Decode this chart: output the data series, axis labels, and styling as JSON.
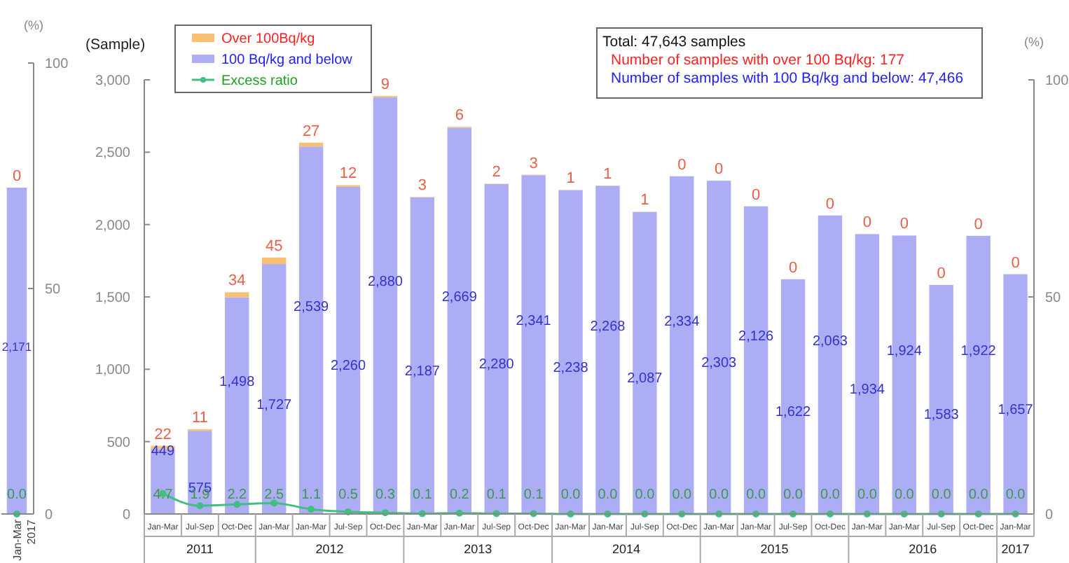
{
  "chart_data": [
    {
      "type": "bar",
      "stacked": true,
      "categories": [
        "Jan-Mar"
      ],
      "y2lim": [
        0,
        100
      ],
      "y2ticks": [
        0,
        50,
        100
      ],
      "y2label": "(%)",
      "marker": "circle",
      "annotations": [
        "2017"
      ],
      "series": [
        {
          "color": "#adadf5",
          "values": [
            2171
          ],
          "value_labels": [
            "2,171"
          ]
        },
        {
          "color": "#f8c070",
          "values": [
            0
          ],
          "value_labels": [
            "0"
          ]
        },
        {
          "type": "line",
          "axis": "y2",
          "color": "#40c080",
          "values": [
            0.0
          ],
          "value_labels": [
            "0.0"
          ]
        }
      ]
    },
    {
      "type": "bar",
      "stacked": true,
      "categories": [
        "Jan-Mar",
        "Jul-Sep",
        "Oct-Dec",
        "Jan-Mar",
        "Jan-Mar",
        "Jul-Sep",
        "Oct-Dec",
        "Jan-Mar",
        "Jan-Mar",
        "Jul-Sep",
        "Oct-Dec",
        "Jan-Mar",
        "Jan-Mar",
        "Jul-Sep",
        "Oct-Dec",
        "Jan-Mar",
        "Jan-Mar",
        "Jul-Sep",
        "Oct-Dec",
        "Jan-Mar",
        "Jan-Mar",
        "Jul-Sep",
        "Oct-Dec",
        "Jan-Mar"
      ],
      "ylabel": "(Sample)",
      "y2label": "(%)",
      "ylim": [
        0,
        3000
      ],
      "yticks": [
        0,
        500,
        {
          "value": 1000,
          "label": "1,000"
        },
        {
          "value": 1500,
          "label": "1,500"
        },
        {
          "value": 2000,
          "label": "2,000"
        },
        {
          "value": 2500,
          "label": "2,500"
        },
        {
          "value": 3000,
          "label": "3,000"
        }
      ],
      "y2lim": [
        0,
        100
      ],
      "y2ticks": [
        0,
        50,
        100
      ],
      "legend": "top left",
      "marker": "circle",
      "annotations": [
        "2011",
        "2012",
        "2013",
        "2014",
        "2015",
        "2016",
        "2017",
        "Total: 47,643 samples",
        "Number of samples with over 100 Bq/kg: 177",
        "Number of samples with 100 Bq/kg and below: 47,466"
      ],
      "series": [
        {
          "name": "100 Bq/kg and below",
          "color": "#adadf5",
          "values": [
            449,
            575,
            1498,
            1727,
            2539,
            2260,
            2880,
            2187,
            2669,
            2280,
            2341,
            2238,
            2268,
            2087,
            2334,
            2303,
            2126,
            1622,
            2063,
            1934,
            1924,
            1583,
            1922,
            1657
          ],
          "value_labels": [
            "449",
            "575",
            "1,498",
            "1,727",
            "2,539",
            "2,260",
            "2,880",
            "2,187",
            "2,669",
            "2,280",
            "2,341",
            "2,238",
            "2,268",
            "2,087",
            "2,334",
            "2,303",
            "2,126",
            "1,622",
            "2,063",
            "1,934",
            "1,924",
            "1,583",
            "1,922",
            "1,657"
          ]
        },
        {
          "name": "Over 100Bq/kg",
          "color": "#f8c070",
          "values": [
            22,
            11,
            34,
            45,
            27,
            12,
            9,
            3,
            6,
            2,
            3,
            1,
            1,
            1,
            0,
            0,
            0,
            0,
            0,
            0,
            0,
            0,
            0,
            0
          ],
          "value_labels": [
            "22",
            "11",
            "34",
            "45",
            "27",
            "12",
            "9",
            "3",
            "6",
            "2",
            "3",
            "1",
            "1",
            "1",
            "0",
            "0",
            "0",
            "0",
            "0",
            "0",
            "0",
            "0",
            "0",
            "0"
          ]
        },
        {
          "name": "Excess ratio",
          "type": "line",
          "axis": "y2",
          "color": "#40c080",
          "values": [
            4.7,
            1.9,
            2.2,
            2.5,
            1.1,
            0.5,
            0.3,
            0.1,
            0.2,
            0.1,
            0.1,
            0.0,
            0.0,
            0.0,
            0.0,
            0.0,
            0.0,
            0.0,
            0.0,
            0.0,
            0.0,
            0.0,
            0.0,
            0.0
          ],
          "value_labels": [
            "4.7",
            "1.9",
            "2.2",
            "2.5",
            "1.1",
            "0.5",
            "0.3",
            "0.1",
            "0.2",
            "0.1",
            "0.1",
            "0.0",
            "0.0",
            "0.0",
            "0.0",
            "0.0",
            "0.0",
            "0.0",
            "0.0",
            "0.0",
            "0.0",
            "0.0",
            "0.0",
            "0.0"
          ]
        }
      ]
    }
  ]
}
